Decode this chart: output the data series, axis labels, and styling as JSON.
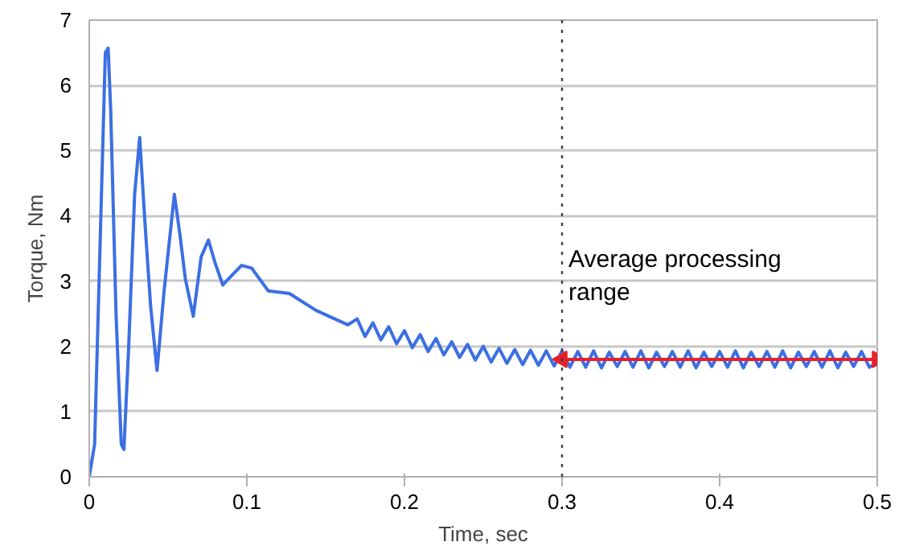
{
  "chart_data": {
    "type": "line",
    "xlabel": "Time, sec",
    "ylabel": "Torque, Nm",
    "xlim": [
      0,
      0.5
    ],
    "xticks": [
      0,
      0.1,
      0.2,
      0.3,
      0.4,
      0.5
    ],
    "ylim": [
      0,
      7
    ],
    "yticks": [
      0,
      1,
      2,
      3,
      4,
      5,
      6,
      7
    ],
    "grid": "y",
    "marker": "none",
    "line_style": "solid",
    "series": [
      {
        "color": "#3b6fe3",
        "x": [
          0,
          0.0034,
          0.0102,
          0.012,
          0.0136,
          0.017,
          0.0203,
          0.022,
          0.025,
          0.0288,
          0.032,
          0.0356,
          0.039,
          0.043,
          0.0475,
          0.054,
          0.0576,
          0.061,
          0.066,
          0.071,
          0.0756,
          0.0797,
          0.0847,
          0.0898,
          0.0966,
          0.103,
          0.1136,
          0.127,
          0.144,
          0.164,
          0.17,
          0.175,
          0.18,
          0.185,
          0.19,
          0.195,
          0.2,
          0.205,
          0.21,
          0.215,
          0.22,
          0.225,
          0.23,
          0.235,
          0.24,
          0.245,
          0.25,
          0.255,
          0.26,
          0.265,
          0.27,
          0.275,
          0.28,
          0.285,
          0.29,
          0.295,
          0.3,
          0.305,
          0.31,
          0.315,
          0.32,
          0.325,
          0.33,
          0.335,
          0.34,
          0.345,
          0.35,
          0.355,
          0.36,
          0.365,
          0.37,
          0.375,
          0.38,
          0.385,
          0.39,
          0.395,
          0.4,
          0.405,
          0.41,
          0.415,
          0.42,
          0.425,
          0.43,
          0.435,
          0.44,
          0.445,
          0.45,
          0.455,
          0.46,
          0.465,
          0.47,
          0.475,
          0.48,
          0.485,
          0.49,
          0.495,
          0.5
        ],
        "values": [
          0,
          0.5,
          6.5,
          6.57,
          5.63,
          2.5,
          0.5,
          0.42,
          1.98,
          4.33,
          5.2,
          3.8,
          2.6,
          1.63,
          2.85,
          4.33,
          3.7,
          3.03,
          2.46,
          3.37,
          3.63,
          3.29,
          2.94,
          3.07,
          3.24,
          3.2,
          2.85,
          2.81,
          2.55,
          2.33,
          2.42,
          2.15,
          2.36,
          2.1,
          2.3,
          2.04,
          2.24,
          1.98,
          2.18,
          1.92,
          2.12,
          1.87,
          2.07,
          1.83,
          2.03,
          1.79,
          2.0,
          1.76,
          1.97,
          1.74,
          1.95,
          1.72,
          1.94,
          1.71,
          1.93,
          1.7,
          1.93,
          1.68,
          1.92,
          1.68,
          1.93,
          1.67,
          1.91,
          1.69,
          1.92,
          1.68,
          1.93,
          1.67,
          1.91,
          1.69,
          1.92,
          1.68,
          1.93,
          1.67,
          1.91,
          1.69,
          1.92,
          1.68,
          1.93,
          1.67,
          1.91,
          1.69,
          1.92,
          1.68,
          1.93,
          1.67,
          1.91,
          1.69,
          1.92,
          1.68,
          1.93,
          1.67,
          1.91,
          1.69,
          1.92,
          1.68,
          1.75
        ]
      },
      {
        "type": "line",
        "color": "#e8202a",
        "marker": "triangle",
        "x": [
          0.3,
          0.5
        ],
        "values": [
          1.8,
          1.8
        ]
      }
    ],
    "ref_lines": [
      {
        "axis": "x",
        "value": 0.3,
        "color": "#404040",
        "line_style": "dotted"
      }
    ],
    "annotations": [
      {
        "text": "Average processing range",
        "x": 0.3,
        "y": 1.8
      }
    ]
  }
}
